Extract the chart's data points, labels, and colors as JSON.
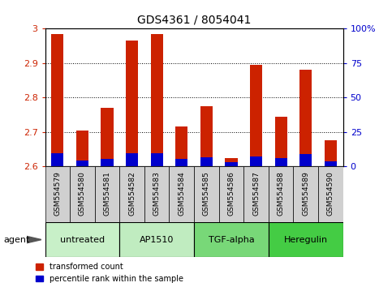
{
  "title": "GDS4361 / 8054041",
  "samples": [
    "GSM554579",
    "GSM554580",
    "GSM554581",
    "GSM554582",
    "GSM554583",
    "GSM554584",
    "GSM554585",
    "GSM554586",
    "GSM554587",
    "GSM554588",
    "GSM554589",
    "GSM554590"
  ],
  "red_values": [
    2.985,
    2.705,
    2.77,
    2.965,
    2.985,
    2.715,
    2.775,
    2.625,
    2.895,
    2.745,
    2.88,
    2.675
  ],
  "blue_values": [
    2.638,
    2.618,
    2.622,
    2.638,
    2.638,
    2.622,
    2.626,
    2.613,
    2.63,
    2.624,
    2.635,
    2.615
  ],
  "base": 2.6,
  "ylim_left": [
    2.6,
    3.0
  ],
  "ylim_right": [
    0,
    100
  ],
  "yticks_left": [
    2.6,
    2.7,
    2.8,
    2.9,
    3.0
  ],
  "yticks_right": [
    0,
    25,
    50,
    75,
    100
  ],
  "ytick_labels_left": [
    "2.6",
    "2.7",
    "2.8",
    "2.9",
    "3"
  ],
  "ytick_labels_right": [
    "0",
    "25",
    "50",
    "75",
    "100%"
  ],
  "groups": [
    {
      "label": "untreated",
      "indices": [
        0,
        1,
        2
      ],
      "color": "#c8f0c8"
    },
    {
      "label": "AP1510",
      "indices": [
        3,
        4,
        5
      ],
      "color": "#c0ecc0"
    },
    {
      "label": "TGF-alpha",
      "indices": [
        6,
        7,
        8
      ],
      "color": "#78d878"
    },
    {
      "label": "Heregulin",
      "indices": [
        9,
        10,
        11
      ],
      "color": "#44cc44"
    }
  ],
  "bar_width": 0.5,
  "red_color": "#cc2200",
  "blue_color": "#0000cc",
  "agent_label": "agent",
  "legend_red": "transformed count",
  "legend_blue": "percentile rank within the sample",
  "tick_color_left": "#cc2200",
  "tick_color_right": "#0000cc",
  "label_area_color": "#d0d0d0",
  "title_fontsize": 10,
  "tick_fontsize": 8,
  "sample_fontsize": 6.5,
  "group_fontsize": 8,
  "legend_fontsize": 7
}
